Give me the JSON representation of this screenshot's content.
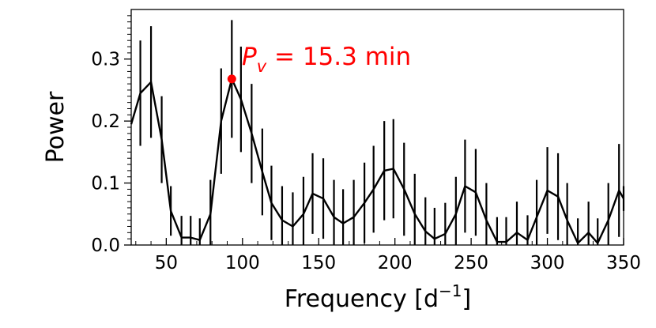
{
  "chart_data": {
    "type": "line",
    "xlabel": "Frequency [d",
    "xlabel_sup": "−1",
    "xlabel_end": "]",
    "ylabel": "Power",
    "xlim": [
      27,
      350
    ],
    "ylim": [
      0,
      0.38
    ],
    "xticks": [
      50,
      100,
      150,
      200,
      250,
      300,
      350
    ],
    "yticks": [
      0.0,
      0.1,
      0.2,
      0.3
    ],
    "xtick_labels": [
      "50",
      "100",
      "150",
      "200",
      "250",
      "300",
      "350"
    ],
    "ytick_labels": [
      "0.0",
      "0.1",
      "0.2",
      "0.3"
    ],
    "line_color": "#000000",
    "highlight_color": "#ff0000",
    "series": [
      {
        "x": [
          27,
          33,
          40,
          47,
          53,
          60,
          66,
          72,
          79,
          86,
          93,
          99,
          106,
          113,
          119,
          126,
          133,
          140,
          146,
          153,
          160,
          166,
          173,
          180,
          186,
          193,
          199,
          206,
          213,
          220,
          226,
          233,
          240,
          246,
          253,
          260,
          267,
          273,
          280,
          287,
          293,
          300,
          307,
          313,
          320,
          327,
          333,
          340,
          347,
          350
        ],
        "y": [
          0.195,
          0.245,
          0.263,
          0.17,
          0.055,
          0.012,
          0.012,
          0.008,
          0.05,
          0.2,
          0.268,
          0.235,
          0.18,
          0.118,
          0.068,
          0.04,
          0.03,
          0.05,
          0.083,
          0.075,
          0.045,
          0.035,
          0.045,
          0.068,
          0.09,
          0.12,
          0.123,
          0.09,
          0.05,
          0.022,
          0.01,
          0.018,
          0.05,
          0.095,
          0.085,
          0.04,
          0.005,
          0.005,
          0.02,
          0.008,
          0.045,
          0.088,
          0.078,
          0.04,
          0.003,
          0.02,
          0.003,
          0.04,
          0.088,
          0.075
        ],
        "err": [
          0.0,
          0.085,
          0.09,
          0.07,
          0.04,
          0.035,
          0.035,
          0.035,
          0.055,
          0.085,
          0.095,
          0.085,
          0.08,
          0.07,
          0.06,
          0.055,
          0.055,
          0.06,
          0.065,
          0.065,
          0.06,
          0.055,
          0.06,
          0.065,
          0.07,
          0.08,
          0.08,
          0.075,
          0.065,
          0.055,
          0.05,
          0.05,
          0.06,
          0.075,
          0.07,
          0.06,
          0.04,
          0.04,
          0.05,
          0.04,
          0.06,
          0.07,
          0.07,
          0.06,
          0.04,
          0.05,
          0.04,
          0.06,
          0.075,
          0.02
        ]
      }
    ],
    "highlight": {
      "x": 93,
      "y": 0.268
    },
    "annotation": {
      "prefix": "P",
      "sub": "v",
      "text": " = 15.3 min"
    }
  }
}
